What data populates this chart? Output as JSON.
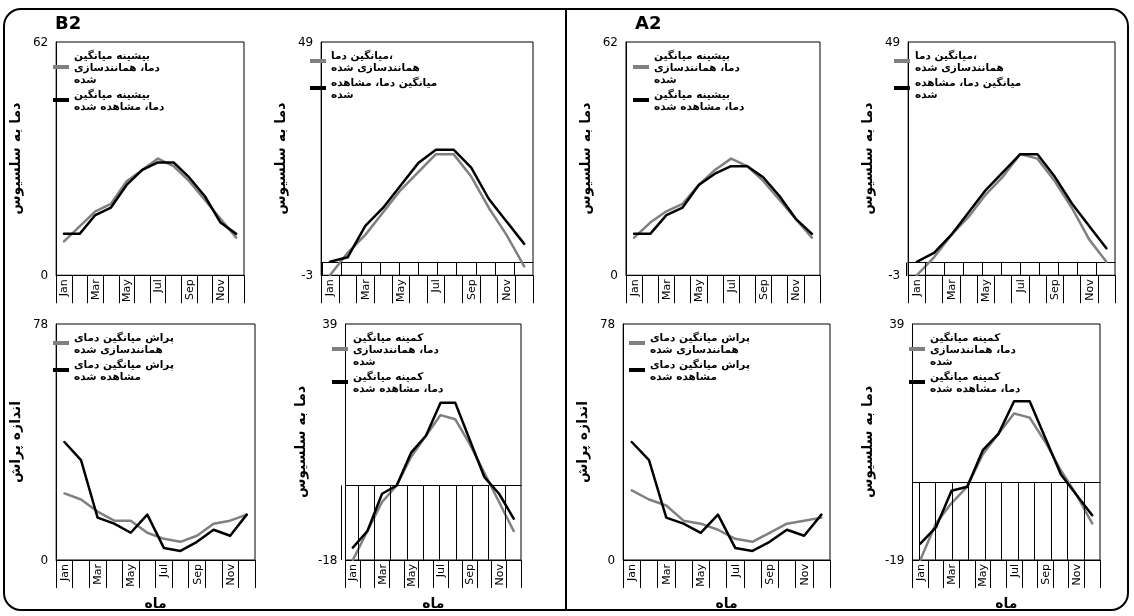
{
  "chart_data": [
    {
      "type": "line",
      "title": "B2",
      "ylabel": "دما به سلسیوس",
      "categories": [
        "Jan",
        null,
        "Mar",
        null,
        "May",
        null,
        "Jul",
        null,
        "Sep",
        null,
        "Nov",
        null
      ],
      "ylim": [
        0,
        62
      ],
      "yticks": [
        0,
        62
      ],
      "legend": "top",
      "marker": "none",
      "line_style": "solid",
      "series": [
        {
          "name": "بیشینه میانگین دما، همانندسازی شده",
          "color": "#808080",
          "values": [
            9,
            13,
            17,
            19,
            25,
            28,
            31,
            29,
            25,
            20,
            15,
            10
          ]
        },
        {
          "name": "بیشینه میانگین دما، مشاهده شده",
          "color": "#000000",
          "values": [
            11,
            11,
            16,
            18,
            24,
            28,
            30,
            30,
            26,
            21,
            14,
            11
          ]
        }
      ]
    },
    {
      "type": "line",
      "ylabel": "دما به سلسیوس",
      "categories": [
        "Jan",
        null,
        "Mar",
        null,
        "May",
        null,
        "Jul",
        null,
        "Sep",
        null,
        "Nov",
        null
      ],
      "ylim": [
        -3,
        49
      ],
      "yticks": [
        -3,
        49
      ],
      "legend": "top",
      "marker": "none",
      "line_style": "solid",
      "series": [
        {
          "name": "میانگین دما، همانندسازی شده",
          "color": "#808080",
          "values": [
            -3,
            2,
            6,
            11,
            16,
            20,
            24,
            24,
            19,
            12,
            6,
            -1
          ]
        },
        {
          "name": "میانگین دما، مشاهده شده",
          "color": "#000000",
          "values": [
            0,
            1,
            8,
            12,
            17,
            22,
            25,
            25,
            21,
            14,
            9,
            4
          ]
        }
      ]
    },
    {
      "type": "line",
      "title": "A2",
      "ylabel": "دما به سلسیوس",
      "categories": [
        "Jan",
        null,
        "Mar",
        null,
        "May",
        null,
        "Jul",
        null,
        "Sep",
        null,
        "Nov",
        null
      ],
      "ylim": [
        0,
        62
      ],
      "yticks": [
        0,
        62
      ],
      "legend": "top",
      "marker": "none",
      "line_style": "solid",
      "series": [
        {
          "name": "بیشینه میانگین دما، همانندسازی شده",
          "color": "#808080",
          "values": [
            10,
            14,
            17,
            19,
            24,
            28,
            31,
            29,
            25,
            20,
            15,
            10
          ]
        },
        {
          "name": "بیشینه میانگین دما، مشاهده شده",
          "color": "#000000",
          "values": [
            11,
            11,
            16,
            18,
            24,
            27,
            29,
            29,
            26,
            21,
            15,
            11
          ]
        }
      ]
    },
    {
      "type": "line",
      "ylabel": "دما به سلسیوس",
      "categories": [
        "Jan",
        null,
        "Mar",
        null,
        "May",
        null,
        "Jul",
        null,
        "Sep",
        null,
        "Nov",
        null
      ],
      "ylim": [
        -3,
        49
      ],
      "yticks": [
        -3,
        49
      ],
      "legend": "top",
      "marker": "none",
      "line_style": "solid",
      "series": [
        {
          "name": "میانگین دما، همانندسازی شده",
          "color": "#808080",
          "values": [
            -3,
            1,
            6,
            10,
            15,
            19,
            24,
            23,
            18,
            12,
            5,
            0
          ]
        },
        {
          "name": "میانگین دما، مشاهده شده",
          "color": "#000000",
          "values": [
            0,
            2,
            6,
            11,
            16,
            20,
            24,
            24,
            19,
            13,
            8,
            3
          ]
        }
      ]
    },
    {
      "type": "line",
      "xlabel": "ماه",
      "ylabel": "اندازه پراش",
      "categories": [
        "Jan",
        null,
        "Mar",
        null,
        "May",
        null,
        "Jul",
        null,
        "Sep",
        null,
        "Nov",
        null
      ],
      "ylim": [
        0,
        78
      ],
      "yticks": [
        0,
        78
      ],
      "legend": "top",
      "marker": "none",
      "line_style": "solid",
      "series": [
        {
          "name": "پراش میانگین دمای همانندسازی شده",
          "color": "#808080",
          "values": [
            22,
            20,
            16,
            13,
            13,
            9,
            7,
            6,
            8,
            12,
            13,
            15
          ]
        },
        {
          "name": "پراش میانگین دمای مشاهده شده",
          "color": "#000000",
          "values": [
            39,
            33,
            14,
            12,
            9,
            15,
            4,
            3,
            6,
            10,
            8,
            15
          ]
        }
      ]
    },
    {
      "type": "line",
      "xlabel": "ماه",
      "ylabel": "دما به سلسیوس",
      "categories": [
        "Jan",
        null,
        "Mar",
        null,
        "May",
        null,
        "Jul",
        null,
        "Sep",
        null,
        "Nov",
        null
      ],
      "ylim": [
        -18,
        39
      ],
      "yticks": [
        -18,
        39
      ],
      "legend": "top",
      "marker": "none",
      "line_style": "solid",
      "series": [
        {
          "name": "کمینه میانگین دما، همانندسازی شده",
          "color": "#808080",
          "values": [
            -18,
            -11,
            -4,
            0,
            7,
            12,
            17,
            16,
            10,
            3,
            -4,
            -11
          ]
        },
        {
          "name": "کمینه میانگین دما، مشاهده شده",
          "color": "#000000",
          "values": [
            -15,
            -11,
            -2,
            0,
            8,
            12,
            20,
            20,
            11,
            2,
            -2,
            -8
          ]
        }
      ]
    },
    {
      "type": "line",
      "xlabel": "ماه",
      "ylabel": "اندازه پراش",
      "categories": [
        "Jan",
        null,
        "Mar",
        null,
        "May",
        null,
        "Jul",
        null,
        "Sep",
        null,
        "Nov",
        null
      ],
      "ylim": [
        0,
        78
      ],
      "yticks": [
        0,
        78
      ],
      "legend": "top",
      "marker": "none",
      "line_style": "solid",
      "series": [
        {
          "name": "پراش میانگین دمای همانندسازی شده",
          "color": "#808080",
          "values": [
            23,
            20,
            18,
            13,
            12,
            10,
            7,
            6,
            9,
            12,
            13,
            14
          ]
        },
        {
          "name": "پراش میانگین دمای مشاهده شده",
          "color": "#000000",
          "values": [
            39,
            33,
            14,
            12,
            9,
            15,
            4,
            3,
            6,
            10,
            8,
            15
          ]
        }
      ]
    },
    {
      "type": "line",
      "xlabel": "ماه",
      "ylabel": "دما به سلسیوس",
      "categories": [
        "Jan",
        null,
        "Mar",
        null,
        "May",
        null,
        "Jul",
        null,
        "Sep",
        null,
        "Nov",
        null
      ],
      "ylim": [
        -19,
        39
      ],
      "yticks": [
        -19,
        39
      ],
      "legend": "top",
      "marker": "none",
      "line_style": "solid",
      "series": [
        {
          "name": "کمینه میانگین دما، همانندسازی شده",
          "color": "#808080",
          "values": [
            -19,
            -10,
            -5,
            -1,
            7,
            12,
            17,
            16,
            10,
            3,
            -3,
            -10
          ]
        },
        {
          "name": "کمینه میانگین دما، مشاهده شده",
          "color": "#000000",
          "values": [
            -15,
            -11,
            -2,
            -1,
            8,
            12,
            20,
            20,
            11,
            2,
            -3,
            -8
          ]
        }
      ]
    }
  ]
}
